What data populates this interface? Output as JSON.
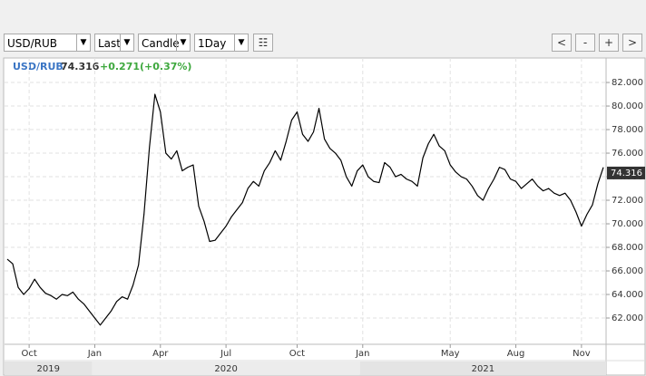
{
  "toolbar": {
    "symbol": "USD/RUB",
    "price_type": "Last",
    "chart_type": "Candle",
    "period": "1Day",
    "nav": [
      "<",
      "-",
      "+",
      ">"
    ]
  },
  "chart_data": {
    "type": "line",
    "last": 74.316,
    "change_label": "+0.271(+0.37%)",
    "categories": [
      null,
      null,
      null,
      null,
      "Oct",
      null,
      null,
      null,
      null,
      null,
      null,
      null,
      null,
      null,
      null,
      null,
      "Jan",
      null,
      null,
      null,
      null,
      null,
      null,
      null,
      null,
      null,
      null,
      null,
      "Apr",
      null,
      null,
      null,
      null,
      null,
      null,
      null,
      null,
      null,
      null,
      null,
      "Jul",
      null,
      null,
      null,
      null,
      null,
      null,
      null,
      null,
      null,
      null,
      null,
      null,
      "Oct",
      null,
      null,
      null,
      null,
      null,
      null,
      null,
      null,
      null,
      null,
      null,
      "Jan",
      null,
      null,
      null,
      null,
      null,
      null,
      null,
      null,
      null,
      null,
      null,
      null,
      null,
      null,
      null,
      "May",
      null,
      null,
      null,
      null,
      null,
      null,
      null,
      null,
      null,
      null,
      null,
      "Aug",
      null,
      null,
      null,
      null,
      null,
      null,
      null,
      null,
      null,
      null,
      null,
      "Nov",
      null,
      null,
      null,
      null
    ],
    "series": [
      {
        "name": "USD/RUB",
        "color": "#000000",
        "values": [
          67.0,
          66.6,
          64.6,
          64.0,
          64.5,
          65.3,
          64.6,
          64.1,
          63.9,
          63.6,
          64.0,
          63.9,
          64.2,
          63.6,
          63.2,
          62.6,
          62.0,
          61.4,
          62.0,
          62.6,
          63.4,
          63.8,
          63.6,
          64.8,
          66.5,
          70.8,
          76.5,
          81.0,
          79.5,
          76.0,
          75.5,
          76.2,
          74.5,
          74.8,
          75.0,
          71.5,
          70.2,
          68.5,
          68.6,
          69.2,
          69.8,
          70.6,
          71.2,
          71.8,
          73.0,
          73.6,
          73.2,
          74.5,
          75.2,
          76.2,
          75.4,
          77.0,
          78.8,
          79.5,
          77.6,
          77.0,
          77.8,
          79.8,
          77.2,
          76.4,
          76.0,
          75.4,
          74.0,
          73.2,
          74.5,
          75.0,
          74.0,
          73.6,
          73.5,
          75.2,
          74.8,
          74.0,
          74.2,
          73.8,
          73.6,
          73.2,
          75.6,
          76.8,
          77.6,
          76.6,
          76.2,
          75.0,
          74.4,
          74.0,
          73.8,
          73.2,
          72.4,
          72.0,
          73.0,
          73.8,
          74.8,
          74.6,
          73.8,
          73.6,
          73.0,
          73.4,
          73.8,
          73.2,
          72.8,
          73.0,
          72.6,
          72.4,
          72.6,
          72.0,
          71.0,
          69.8,
          70.8,
          71.6,
          73.4,
          74.8
        ]
      }
    ],
    "ylim": [
      59.77,
      84.08
    ],
    "yticks": [
      {
        "value": 62,
        "label": "62.000"
      },
      {
        "value": 64,
        "label": "64.000"
      },
      {
        "value": 66,
        "label": "66.000"
      },
      {
        "value": 68,
        "label": "68.000"
      },
      {
        "value": 70,
        "label": "70.000"
      },
      {
        "value": 72,
        "label": "72.000"
      },
      {
        "value": 74,
        "label": "74.000"
      },
      {
        "value": 76,
        "label": "76.000"
      },
      {
        "value": 78,
        "label": "78.000"
      },
      {
        "value": 80,
        "label": "80.000"
      },
      {
        "value": 82,
        "label": "82.000"
      }
    ],
    "years": [
      "2019",
      "2020",
      "2021"
    ],
    "grid": true
  }
}
